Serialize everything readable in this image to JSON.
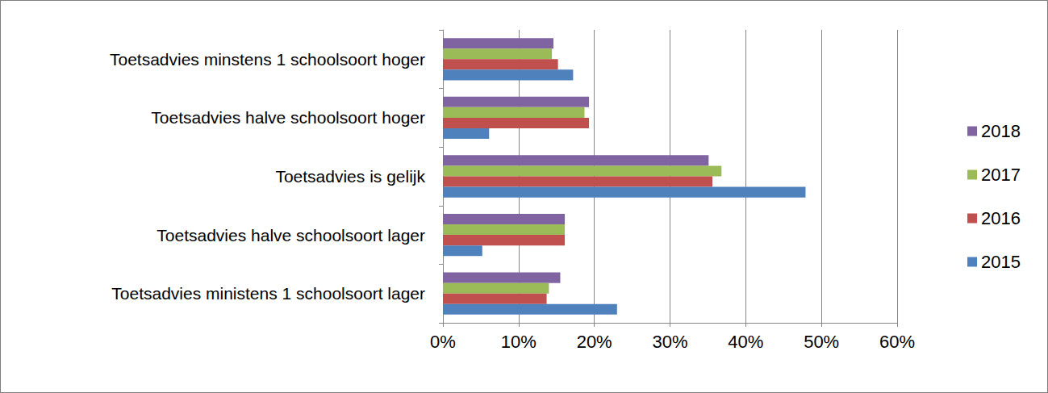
{
  "chart_data": {
    "type": "bar",
    "orientation": "horizontal",
    "categories": [
      "Toetsadvies minstens 1 schoolsoort hoger",
      "Toetsadvies halve schoolsoort hoger",
      "Toetsadvies is gelijk",
      "Toetsadvies halve schoolsoort lager",
      "Toetsadvies ministens 1 schoolsoort lager"
    ],
    "series": [
      {
        "name": "2018",
        "color": "#8064a2",
        "values": [
          14.6,
          19.3,
          35.1,
          16.1,
          15.5
        ]
      },
      {
        "name": "2017",
        "color": "#9bbb59",
        "values": [
          14.4,
          18.7,
          36.8,
          16.1,
          14.0
        ]
      },
      {
        "name": "2016",
        "color": "#c0504d",
        "values": [
          15.2,
          19.3,
          35.6,
          16.1,
          13.7
        ]
      },
      {
        "name": "2015",
        "color": "#4f81bd",
        "values": [
          17.2,
          6.1,
          47.9,
          5.2,
          23.0
        ]
      }
    ],
    "xlim": [
      0,
      60
    ],
    "xticks": [
      {
        "value": 0,
        "label": "0%"
      },
      {
        "value": 10,
        "label": "10%"
      },
      {
        "value": 20,
        "label": "20%"
      },
      {
        "value": 30,
        "label": "30%"
      },
      {
        "value": 40,
        "label": "40%"
      },
      {
        "value": 50,
        "label": "50%"
      },
      {
        "value": 60,
        "label": "60%"
      }
    ],
    "grid": true,
    "legend": "right"
  }
}
